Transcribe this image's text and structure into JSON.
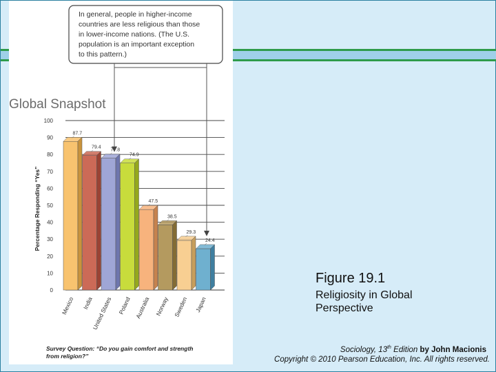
{
  "chart_data": {
    "type": "bar",
    "title": "Global Snapshot",
    "callout": [
      "In general, people in higher-income",
      "countries are less religious than those",
      "in lower-income nations. (The U.S.",
      "population is an important exception",
      "to this pattern.)"
    ],
    "ylabel": "Percentage Responding “Yes”",
    "ylim": [
      0,
      100
    ],
    "yticks": [
      0,
      10,
      20,
      30,
      40,
      50,
      60,
      70,
      80,
      90,
      100
    ],
    "categories": [
      "Mexico",
      "India",
      "United States",
      "Poland",
      "Australia",
      "Norway",
      "Sweden",
      "Japan"
    ],
    "values": [
      87.7,
      79.4,
      77.8,
      74.9,
      47.5,
      38.5,
      29.3,
      24.4
    ],
    "value_labels": [
      "87.7",
      "79.4",
      "77.8",
      "74.9",
      "47.5",
      "38.5",
      "29.3",
      "24.4"
    ],
    "colors": [
      "#f8c36f",
      "#cc6a57",
      "#9fa6d6",
      "#c8dc3c",
      "#f7b37d",
      "#b49a5f",
      "#f8cf92",
      "#6fb0cf"
    ],
    "dark_colors": [
      "#c9933c",
      "#9a4334",
      "#6e76ad",
      "#95a81c",
      "#c6824e",
      "#836c35",
      "#c79e5c",
      "#3f7fa0"
    ],
    "survey_question": [
      "Survey Question: “Do you gain comfort and strength",
      "from religion?”"
    ],
    "grid": true,
    "legend": "none"
  },
  "slide": {
    "figure_number": "Figure 19.1",
    "caption": "Religiosity in Global Perspective",
    "book_title": "Sociology, 13",
    "edition_sup": "th",
    "edition_rest": " Edition",
    "author": " by John Macionis",
    "copyright": "Copyright © 2010 Pearson Education, Inc.  All rights reserved."
  }
}
